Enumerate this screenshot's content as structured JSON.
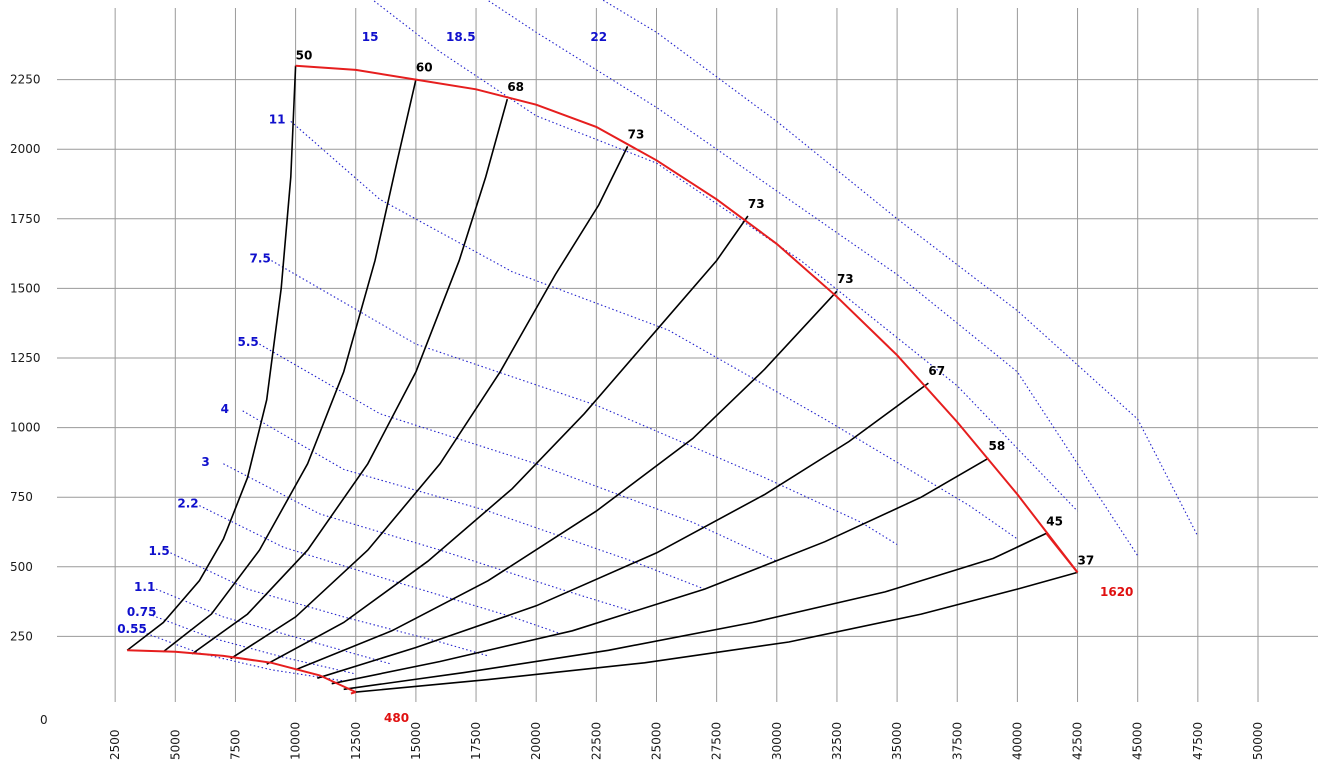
{
  "chart_data": {
    "type": "line",
    "title": "",
    "xlabel": "",
    "ylabel": "",
    "xlim": [
      0,
      52500
    ],
    "ylim": [
      -40,
      2500
    ],
    "colors": {
      "envelope": "#e61e1e",
      "efficiency": "#000000",
      "power": "#2222cc",
      "grid": "#9a9a9a"
    },
    "x_ticks": [
      "2500",
      "5000",
      "7500",
      "10000",
      "12500",
      "15000",
      "17500",
      "20000",
      "22500",
      "25000",
      "27500",
      "30000",
      "32500",
      "35000",
      "37500",
      "40000",
      "42500",
      "45000",
      "47500",
      "50000"
    ],
    "y_ticks": [
      "250",
      "500",
      "750",
      "1000",
      "1250",
      "1500",
      "1750",
      "2000",
      "2250"
    ],
    "origin_label": "0",
    "envelope": {
      "upper": [
        [
          10000,
          2300
        ],
        [
          12500,
          2285
        ],
        [
          15000,
          2250
        ],
        [
          17500,
          2215
        ],
        [
          20000,
          2160
        ],
        [
          22500,
          2080
        ],
        [
          25000,
          1960
        ],
        [
          27500,
          1820
        ],
        [
          30000,
          1660
        ],
        [
          32500,
          1470
        ],
        [
          35000,
          1260
        ],
        [
          37500,
          1020
        ],
        [
          40000,
          760
        ],
        [
          42500,
          480
        ]
      ],
      "lower": [
        [
          3000,
          200
        ],
        [
          5000,
          195
        ],
        [
          7000,
          180
        ],
        [
          9000,
          155
        ],
        [
          11000,
          110
        ],
        [
          12500,
          50
        ]
      ],
      "left": [
        [
          3000,
          200
        ],
        [
          4500,
          300
        ],
        [
          6000,
          450
        ],
        [
          7000,
          600
        ],
        [
          8000,
          820
        ],
        [
          8800,
          1100
        ],
        [
          9400,
          1500
        ],
        [
          9800,
          1900
        ],
        [
          10000,
          2300
        ]
      ],
      "right": [
        [
          42500,
          480
        ],
        [
          41200,
          620
        ]
      ],
      "bottom_label": "480",
      "right_label": "1620"
    },
    "efficiency_series": [
      {
        "name": "50",
        "label": "50",
        "points": [
          [
            3000,
            200
          ],
          [
            4500,
            300
          ],
          [
            6000,
            450
          ],
          [
            7000,
            600
          ],
          [
            8000,
            820
          ],
          [
            8800,
            1100
          ],
          [
            9400,
            1500
          ],
          [
            9800,
            1900
          ],
          [
            10000,
            2300
          ]
        ]
      },
      {
        "name": "60",
        "label": "60",
        "points": [
          [
            4500,
            195
          ],
          [
            6500,
            330
          ],
          [
            8500,
            560
          ],
          [
            10500,
            870
          ],
          [
            12000,
            1200
          ],
          [
            13300,
            1600
          ],
          [
            14200,
            1950
          ],
          [
            15000,
            2250
          ]
        ]
      },
      {
        "name": "68",
        "label": "68",
        "points": [
          [
            5700,
            187
          ],
          [
            8000,
            330
          ],
          [
            10500,
            560
          ],
          [
            13000,
            870
          ],
          [
            15000,
            1200
          ],
          [
            16800,
            1600
          ],
          [
            17900,
            1900
          ],
          [
            18800,
            2180
          ]
        ]
      },
      {
        "name": "73",
        "label": "73",
        "points": [
          [
            7300,
            170
          ],
          [
            10000,
            320
          ],
          [
            13000,
            560
          ],
          [
            16000,
            870
          ],
          [
            18500,
            1200
          ],
          [
            20800,
            1550
          ],
          [
            22600,
            1800
          ],
          [
            23800,
            2010
          ]
        ]
      },
      {
        "name": "73",
        "label": "73",
        "points": [
          [
            8800,
            150
          ],
          [
            12000,
            300
          ],
          [
            15500,
            520
          ],
          [
            19000,
            780
          ],
          [
            22000,
            1050
          ],
          [
            25000,
            1350
          ],
          [
            27500,
            1600
          ],
          [
            28800,
            1760
          ]
        ]
      },
      {
        "name": "73",
        "label": "73",
        "points": [
          [
            10000,
            130
          ],
          [
            14000,
            270
          ],
          [
            18000,
            450
          ],
          [
            22500,
            700
          ],
          [
            26500,
            960
          ],
          [
            29500,
            1210
          ],
          [
            32500,
            1490
          ]
        ]
      },
      {
        "name": "67",
        "label": "67",
        "points": [
          [
            10900,
            100
          ],
          [
            15000,
            210
          ],
          [
            20000,
            360
          ],
          [
            25000,
            550
          ],
          [
            29500,
            760
          ],
          [
            33000,
            950
          ],
          [
            36300,
            1160
          ]
        ]
      },
      {
        "name": "58",
        "label": "58",
        "points": [
          [
            11500,
            80
          ],
          [
            16000,
            160
          ],
          [
            21500,
            270
          ],
          [
            27000,
            420
          ],
          [
            32000,
            590
          ],
          [
            36000,
            750
          ],
          [
            38800,
            890
          ]
        ]
      },
      {
        "name": "45",
        "label": "45",
        "points": [
          [
            12000,
            60
          ],
          [
            17000,
            120
          ],
          [
            23000,
            200
          ],
          [
            29000,
            300
          ],
          [
            34500,
            410
          ],
          [
            39000,
            530
          ],
          [
            41200,
            620
          ]
        ]
      },
      {
        "name": "37",
        "label": "37",
        "points": [
          [
            12500,
            50
          ],
          [
            18000,
            95
          ],
          [
            24500,
            155
          ],
          [
            30500,
            230
          ],
          [
            36000,
            330
          ],
          [
            40000,
            420
          ],
          [
            42500,
            480
          ]
        ]
      }
    ],
    "power_series": [
      {
        "name": "0.55",
        "label": "0.55",
        "points": [
          [
            3500,
            270
          ],
          [
            6000,
            190
          ],
          [
            9000,
            130
          ],
          [
            12000,
            90
          ]
        ]
      },
      {
        "name": "0.75",
        "label": "0.75",
        "points": [
          [
            3900,
            330
          ],
          [
            6500,
            245
          ],
          [
            9500,
            175
          ],
          [
            12500,
            115
          ]
        ]
      },
      {
        "name": "1.1",
        "label": "1.1",
        "points": [
          [
            4200,
            420
          ],
          [
            7000,
            320
          ],
          [
            10500,
            235
          ],
          [
            14000,
            150
          ]
        ]
      },
      {
        "name": "1.5",
        "label": "1.5",
        "points": [
          [
            4800,
            550
          ],
          [
            8000,
            420
          ],
          [
            12000,
            320
          ],
          [
            16000,
            230
          ],
          [
            18000,
            180
          ]
        ]
      },
      {
        "name": "2.2",
        "label": "2.2",
        "points": [
          [
            6000,
            720
          ],
          [
            9500,
            570
          ],
          [
            14000,
            450
          ],
          [
            19000,
            320
          ],
          [
            21000,
            260
          ]
        ]
      },
      {
        "name": "3",
        "label": "3",
        "points": [
          [
            7000,
            870
          ],
          [
            11000,
            690
          ],
          [
            16000,
            560
          ],
          [
            21000,
            420
          ],
          [
            24000,
            340
          ]
        ]
      },
      {
        "name": "4",
        "label": "4",
        "points": [
          [
            7800,
            1060
          ],
          [
            12000,
            850
          ],
          [
            18000,
            700
          ],
          [
            24000,
            520
          ],
          [
            27000,
            420
          ]
        ]
      },
      {
        "name": "5.5",
        "label": "5.5",
        "points": [
          [
            8500,
            1300
          ],
          [
            13500,
            1050
          ],
          [
            20000,
            870
          ],
          [
            26500,
            660
          ],
          [
            30000,
            520
          ]
        ]
      },
      {
        "name": "7.5",
        "label": "7.5",
        "points": [
          [
            9000,
            1600
          ],
          [
            15000,
            1300
          ],
          [
            22500,
            1080
          ],
          [
            29500,
            820
          ],
          [
            33500,
            660
          ],
          [
            35000,
            580
          ]
        ]
      },
      {
        "name": "11",
        "label": "11",
        "points": [
          [
            9800,
            2100
          ],
          [
            13500,
            1820
          ],
          [
            19000,
            1560
          ],
          [
            25500,
            1350
          ],
          [
            32000,
            1030
          ],
          [
            38000,
            720
          ],
          [
            40000,
            600
          ]
        ]
      },
      {
        "name": "15",
        "label": "15",
        "points": [
          [
            13000,
            2550
          ],
          [
            16000,
            2350
          ],
          [
            20000,
            2120
          ],
          [
            25000,
            1950
          ],
          [
            31000,
            1600
          ],
          [
            37500,
            1150
          ],
          [
            42500,
            700
          ]
        ]
      },
      {
        "name": "18.5",
        "label": "18.5",
        "points": [
          [
            16500,
            2620
          ],
          [
            20000,
            2420
          ],
          [
            25000,
            2150
          ],
          [
            30000,
            1850
          ],
          [
            35000,
            1550
          ],
          [
            40000,
            1200
          ],
          [
            45000,
            540
          ]
        ]
      },
      {
        "name": "22",
        "label": "22",
        "points": [
          [
            22500,
            2550
          ],
          [
            25000,
            2420
          ],
          [
            30000,
            2100
          ],
          [
            35000,
            1750
          ],
          [
            40000,
            1420
          ],
          [
            45000,
            1030
          ],
          [
            47500,
            610
          ]
        ]
      }
    ]
  }
}
